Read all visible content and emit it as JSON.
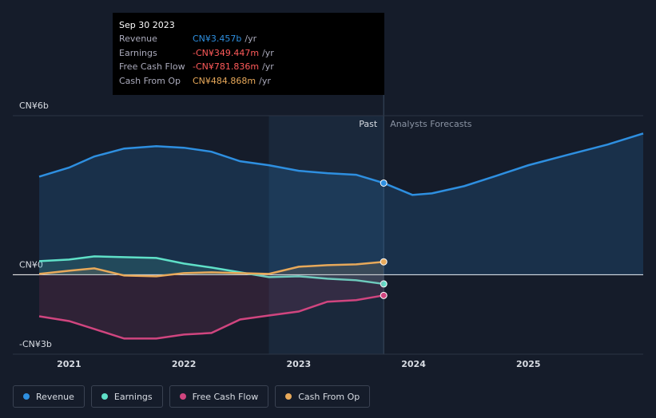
{
  "chart_data": {
    "type": "line",
    "x": [
      2020.74,
      2021.0,
      2021.22,
      2021.48,
      2021.76,
      2022.0,
      2022.24,
      2022.49,
      2022.74,
      2023.0,
      2023.25,
      2023.5,
      2023.74,
      2023.99,
      2024.16,
      2024.44,
      2024.72,
      2025.0,
      2025.34,
      2025.69,
      2026.0
    ],
    "series": [
      {
        "name": "Revenue",
        "color": "#2e8fe0",
        "values": [
          3.7,
          4.04,
          4.46,
          4.76,
          4.85,
          4.79,
          4.64,
          4.28,
          4.13,
          3.92,
          3.83,
          3.77,
          3.457,
          3.01,
          3.07,
          3.34,
          3.73,
          4.13,
          4.52,
          4.91,
          5.33
        ]
      },
      {
        "name": "Earnings",
        "color": "#5fe0c8",
        "values": [
          0.51,
          0.57,
          0.69,
          0.66,
          0.63,
          0.42,
          0.27,
          0.09,
          -0.09,
          -0.06,
          -0.15,
          -0.21,
          -0.349,
          null,
          null,
          null,
          null,
          null,
          null,
          null,
          null
        ]
      },
      {
        "name": "Free Cash Flow",
        "color": "#d0457f",
        "values": [
          -1.57,
          -1.75,
          -2.05,
          -2.41,
          -2.41,
          -2.26,
          -2.2,
          -1.69,
          -1.54,
          -1.39,
          -1.02,
          -0.96,
          -0.782,
          null,
          null,
          null,
          null,
          null,
          null,
          null,
          null
        ]
      },
      {
        "name": "Cash From Op",
        "color": "#e8a95a",
        "values": [
          0.03,
          0.15,
          0.24,
          -0.03,
          -0.06,
          0.06,
          0.09,
          0.06,
          0.03,
          0.3,
          0.36,
          0.39,
          0.485,
          null,
          null,
          null,
          null,
          null,
          null,
          null,
          null
        ]
      }
    ],
    "xlim": [
      2020.51,
      2026.0
    ],
    "xticks": [
      2021,
      2022,
      2023,
      2024,
      2025
    ],
    "ylim": [
      -3,
      6
    ],
    "yticks": [
      {
        "value": 6,
        "label": "CN¥6b"
      },
      {
        "value": 0,
        "label": "CN¥0"
      },
      {
        "value": -3,
        "label": "-CN¥3b"
      }
    ],
    "highlight_range": [
      2022.74,
      2023.74
    ],
    "annotations": [
      "Past",
      "Analysts Forecasts"
    ],
    "tooltip": {
      "title": "Sep 30 2023",
      "rows": [
        {
          "label": "Revenue",
          "value": "CN¥3.457b",
          "unit": "/yr"
        },
        {
          "label": "Earnings",
          "value": "-CN¥349.447m",
          "unit": "/yr"
        },
        {
          "label": "Free Cash Flow",
          "value": "-CN¥781.836m",
          "unit": "/yr"
        },
        {
          "label": "Cash From Op",
          "value": "CN¥484.868m",
          "unit": "/yr"
        }
      ]
    }
  }
}
